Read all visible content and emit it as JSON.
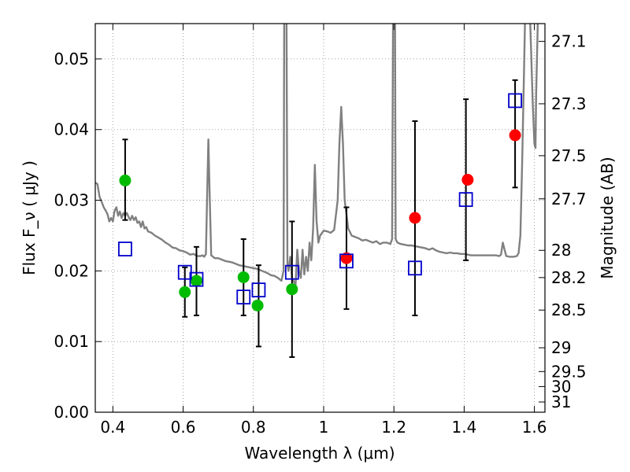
{
  "chart_data": {
    "type": "scatter",
    "title": "",
    "xlabel": "Wavelength  λ (μm)",
    "ylabel": "Flux  F_ν  ( μJy )",
    "ylabel_right": "Magnitude (AB)",
    "xlim": [
      0.35,
      1.63
    ],
    "ylim": [
      0.0,
      0.055
    ],
    "grid": true,
    "legend": "none",
    "x_ticks": [
      0.4,
      0.6,
      0.8,
      1.0,
      1.2,
      1.4,
      1.6
    ],
    "x_tick_labels": [
      "0.4",
      "0.6",
      "0.8",
      "1",
      "1.2",
      "1.4",
      "1.6"
    ],
    "y_ticks": [
      0.0,
      0.01,
      0.02,
      0.03,
      0.04,
      0.05
    ],
    "y_tick_labels": [
      "0.00",
      "0.01",
      "0.02",
      "0.03",
      "0.04",
      "0.05"
    ],
    "right_ticks": [
      {
        "mag": 27.1,
        "label": "27.1"
      },
      {
        "mag": 27.3,
        "label": "27.3"
      },
      {
        "mag": 27.5,
        "label": "27.5"
      },
      {
        "mag": 27.7,
        "label": "27.7"
      },
      {
        "mag": 28.0,
        "label": "28"
      },
      {
        "mag": 28.2,
        "label": "28.2"
      },
      {
        "mag": 28.5,
        "label": "28.5"
      },
      {
        "mag": 29.0,
        "label": "29"
      },
      {
        "mag": 29.5,
        "label": "29.5"
      },
      {
        "mag": 30.0,
        "label": "30"
      },
      {
        "mag": 31.0,
        "label": "31"
      }
    ],
    "colors": {
      "green": "#00bb00",
      "red": "#ff0000",
      "blue_square": "#0000cc",
      "model": "#808080",
      "errorbar": "#000000",
      "grid": "#888888"
    },
    "series": [
      {
        "kind": "model_spectrum",
        "color": "#808080",
        "points": [
          [
            0.35,
            0.0325
          ],
          [
            0.356,
            0.0323
          ],
          [
            0.362,
            0.0305
          ],
          [
            0.368,
            0.0298
          ],
          [
            0.374,
            0.029
          ],
          [
            0.38,
            0.0285
          ],
          [
            0.385,
            0.028
          ],
          [
            0.39,
            0.027
          ],
          [
            0.395,
            0.0275
          ],
          [
            0.4,
            0.027
          ],
          [
            0.405,
            0.0285
          ],
          [
            0.41,
            0.029
          ],
          [
            0.415,
            0.0278
          ],
          [
            0.42,
            0.0284
          ],
          [
            0.425,
            0.0275
          ],
          [
            0.43,
            0.0282
          ],
          [
            0.435,
            0.0278
          ],
          [
            0.44,
            0.0282
          ],
          [
            0.445,
            0.0276
          ],
          [
            0.45,
            0.0272
          ],
          [
            0.455,
            0.0278
          ],
          [
            0.46,
            0.0272
          ],
          [
            0.465,
            0.0276
          ],
          [
            0.47,
            0.0268
          ],
          [
            0.475,
            0.027
          ],
          [
            0.48,
            0.0262
          ],
          [
            0.485,
            0.027
          ],
          [
            0.49,
            0.026
          ],
          [
            0.495,
            0.0262
          ],
          [
            0.5,
            0.0256
          ],
          [
            0.51,
            0.0254
          ],
          [
            0.52,
            0.025
          ],
          [
            0.53,
            0.0247
          ],
          [
            0.54,
            0.0244
          ],
          [
            0.55,
            0.024
          ],
          [
            0.56,
            0.0237
          ],
          [
            0.57,
            0.0233
          ],
          [
            0.58,
            0.0232
          ],
          [
            0.59,
            0.0229
          ],
          [
            0.6,
            0.0228
          ],
          [
            0.61,
            0.0226
          ],
          [
            0.62,
            0.0223
          ],
          [
            0.63,
            0.0224
          ],
          [
            0.64,
            0.0221
          ],
          [
            0.65,
            0.0221
          ],
          [
            0.655,
            0.0222
          ],
          [
            0.66,
            0.022
          ],
          [
            0.665,
            0.0224
          ],
          [
            0.668,
            0.03
          ],
          [
            0.672,
            0.0386
          ],
          [
            0.676,
            0.03
          ],
          [
            0.68,
            0.0222
          ],
          [
            0.69,
            0.0218
          ],
          [
            0.7,
            0.0218
          ],
          [
            0.71,
            0.0216
          ],
          [
            0.72,
            0.0214
          ],
          [
            0.73,
            0.0213
          ],
          [
            0.74,
            0.0212
          ],
          [
            0.75,
            0.021
          ],
          [
            0.76,
            0.0208
          ],
          [
            0.77,
            0.0207
          ],
          [
            0.78,
            0.0206
          ],
          [
            0.79,
            0.0205
          ],
          [
            0.8,
            0.0204
          ],
          [
            0.81,
            0.0203
          ],
          [
            0.82,
            0.0201
          ],
          [
            0.83,
            0.0199
          ],
          [
            0.84,
            0.0197
          ],
          [
            0.85,
            0.0194
          ],
          [
            0.86,
            0.0193
          ],
          [
            0.87,
            0.019
          ],
          [
            0.88,
            0.0186
          ],
          [
            0.886,
            0.02
          ],
          [
            0.888,
            0.06
          ],
          [
            0.894,
            0.06
          ],
          [
            0.897,
            0.021
          ],
          [
            0.9,
            0.02
          ],
          [
            0.905,
            0.022
          ],
          [
            0.91,
            0.019
          ],
          [
            0.92,
            0.018
          ],
          [
            0.925,
            0.023
          ],
          [
            0.93,
            0.02
          ],
          [
            0.935,
            0.019
          ],
          [
            0.94,
            0.023
          ],
          [
            0.945,
            0.0195
          ],
          [
            0.95,
            0.022
          ],
          [
            0.955,
            0.02
          ],
          [
            0.96,
            0.024
          ],
          [
            0.965,
            0.0215
          ],
          [
            0.97,
            0.026
          ],
          [
            0.975,
            0.035
          ],
          [
            0.98,
            0.027
          ],
          [
            0.985,
            0.024
          ],
          [
            0.99,
            0.025
          ],
          [
            1.0,
            0.0257
          ],
          [
            1.01,
            0.0256
          ],
          [
            1.02,
            0.0254
          ],
          [
            1.03,
            0.0258
          ],
          [
            1.04,
            0.03
          ],
          [
            1.045,
            0.038
          ],
          [
            1.05,
            0.0432
          ],
          [
            1.055,
            0.038
          ],
          [
            1.06,
            0.03
          ],
          [
            1.07,
            0.026
          ],
          [
            1.08,
            0.025
          ],
          [
            1.09,
            0.0248
          ],
          [
            1.1,
            0.0246
          ],
          [
            1.11,
            0.0243
          ],
          [
            1.12,
            0.0244
          ],
          [
            1.13,
            0.0242
          ],
          [
            1.14,
            0.024
          ],
          [
            1.15,
            0.0242
          ],
          [
            1.16,
            0.0238
          ],
          [
            1.17,
            0.024
          ],
          [
            1.18,
            0.024
          ],
          [
            1.19,
            0.0238
          ],
          [
            1.195,
            0.0245
          ],
          [
            1.198,
            0.06
          ],
          [
            1.203,
            0.06
          ],
          [
            1.205,
            0.0245
          ],
          [
            1.21,
            0.024
          ],
          [
            1.22,
            0.0238
          ],
          [
            1.23,
            0.0237
          ],
          [
            1.24,
            0.0236
          ],
          [
            1.25,
            0.0236
          ],
          [
            1.26,
            0.0235
          ],
          [
            1.27,
            0.0234
          ],
          [
            1.28,
            0.0233
          ],
          [
            1.29,
            0.0232
          ],
          [
            1.3,
            0.023
          ],
          [
            1.31,
            0.0232
          ],
          [
            1.32,
            0.0229
          ],
          [
            1.33,
            0.0227
          ],
          [
            1.34,
            0.0226
          ],
          [
            1.35,
            0.0225
          ],
          [
            1.36,
            0.0226
          ],
          [
            1.37,
            0.0225
          ],
          [
            1.38,
            0.0225
          ],
          [
            1.39,
            0.0224
          ],
          [
            1.4,
            0.0224
          ],
          [
            1.41,
            0.0223
          ],
          [
            1.42,
            0.0222
          ],
          [
            1.43,
            0.0222
          ],
          [
            1.44,
            0.0222
          ],
          [
            1.45,
            0.0222
          ],
          [
            1.46,
            0.0222
          ],
          [
            1.47,
            0.0222
          ],
          [
            1.48,
            0.0222
          ],
          [
            1.49,
            0.0222
          ],
          [
            1.5,
            0.0221
          ],
          [
            1.505,
            0.0223
          ],
          [
            1.51,
            0.024
          ],
          [
            1.515,
            0.023
          ],
          [
            1.52,
            0.0221
          ],
          [
            1.53,
            0.022
          ],
          [
            1.54,
            0.022
          ],
          [
            1.55,
            0.0221
          ],
          [
            1.555,
            0.0225
          ],
          [
            1.56,
            0.025
          ],
          [
            1.565,
            0.035
          ],
          [
            1.57,
            0.047
          ],
          [
            1.575,
            0.06
          ],
          [
            1.585,
            0.06
          ],
          [
            1.59,
            0.052
          ],
          [
            1.595,
            0.044
          ],
          [
            1.6,
            0.038
          ],
          [
            1.603,
            0.0374
          ],
          [
            1.605,
            0.045
          ],
          [
            1.61,
            0.056
          ]
        ]
      },
      {
        "kind": "green_points",
        "marker": "circle",
        "color": "#00bb00",
        "x": [
          0.435,
          0.605,
          0.638,
          0.772,
          0.812,
          0.91
        ],
        "y": [
          0.0328,
          0.017,
          0.0186,
          0.0191,
          0.0151,
          0.0174
        ]
      },
      {
        "kind": "red_points",
        "marker": "circle",
        "color": "#ff0000",
        "x": [
          1.065,
          1.26,
          1.41,
          1.545
        ],
        "y": [
          0.0218,
          0.0275,
          0.0329,
          0.0392
        ]
      },
      {
        "kind": "blue_squares",
        "marker": "square",
        "color": "#0000cc",
        "x": [
          0.435,
          0.605,
          0.638,
          0.772,
          0.815,
          0.91,
          1.065,
          1.26,
          1.405,
          1.545
        ],
        "y": [
          0.0231,
          0.0198,
          0.0188,
          0.0163,
          0.0173,
          0.0198,
          0.0214,
          0.0204,
          0.0301,
          0.0441
        ]
      },
      {
        "kind": "errorbars",
        "color": "#000000",
        "x": [
          0.435,
          0.605,
          0.638,
          0.772,
          0.815,
          0.91,
          1.065,
          1.26,
          1.405,
          1.545
        ],
        "y_low": [
          0.0272,
          0.0135,
          0.0137,
          0.0137,
          0.0093,
          0.0078,
          0.0146,
          0.0137,
          0.0215,
          0.0318
        ],
        "y_high": [
          0.0386,
          0.0205,
          0.0234,
          0.0245,
          0.0208,
          0.027,
          0.029,
          0.0412,
          0.0443,
          0.047
        ]
      }
    ]
  }
}
